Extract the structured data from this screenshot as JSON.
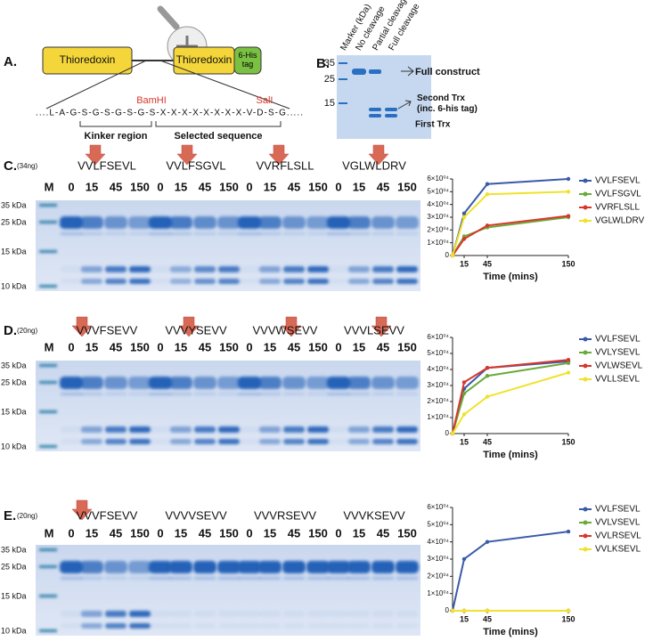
{
  "panel_a": {
    "label": "A.",
    "box1": "Thioredoxin",
    "box2": "Thioredoxin",
    "tag": "6-His tag",
    "site1": "BamHI",
    "site2": "SalI",
    "sequence": "....L-A-G-S-G-S-G-S-G-S-X-X-X-X-X-X-X-X-V-D-S-G.....",
    "region1": "Kinker region",
    "region2": "Selected sequence"
  },
  "panel_b": {
    "label": "B.",
    "lanes": [
      "Marker (kDa)",
      "No cleavage",
      "Partial cleavage",
      "Full cleavage"
    ],
    "markers": [
      "35",
      "25",
      "15"
    ],
    "notes": [
      "Full construct",
      "Second Trx (inc. 6-his tag)",
      "First Trx"
    ]
  },
  "gels": [
    {
      "label": "C.",
      "amount": "(34ng)",
      "peptides": [
        "VVLFSEVL",
        "VVLFSGVL",
        "VVRFLSLL",
        "VGLWLDRV"
      ],
      "marker_lane": "M",
      "times": [
        "0",
        "15",
        "45",
        "150"
      ],
      "size_markers": [
        "35 kDa",
        "25 kDa",
        "15 kDa",
        "10 kDa"
      ]
    },
    {
      "label": "D.",
      "amount": "(20ng)",
      "peptides": [
        "VVVFSEVV",
        "VVVYSEVV",
        "VVVWSEVV",
        "VVVLSEVV"
      ],
      "marker_lane": "M",
      "times": [
        "0",
        "15",
        "45",
        "150"
      ],
      "size_markers": [
        "35 kDa",
        "25 kDa",
        "15 kDa",
        "10 kDa"
      ]
    },
    {
      "label": "E.",
      "amount": "(20ng)",
      "peptides": [
        "VVVFSEVV",
        "VVVVSEVV",
        "VVVRSEVV",
        "VVVKSEVV"
      ],
      "marker_lane": "M",
      "times": [
        "0",
        "15",
        "45",
        "150"
      ],
      "size_markers": [
        "35 kDa",
        "25 kDa",
        "15 kDa",
        "10 kDa"
      ]
    }
  ],
  "chart_data": [
    {
      "type": "line",
      "x_label": "Time (mins)",
      "x": [
        0,
        15,
        45,
        150
      ],
      "xlim": [
        0,
        150
      ],
      "xticks": [
        15,
        45,
        150
      ],
      "ylim": [
        0,
        60000
      ],
      "yticks": [
        0,
        {
          "value": 10000,
          "label": "1×10⁰⁴"
        },
        {
          "value": 20000,
          "label": "2×10⁰⁴"
        },
        {
          "value": 30000,
          "label": "3×10⁰⁴"
        },
        {
          "value": 40000,
          "label": "4×10⁰⁴"
        },
        {
          "value": 50000,
          "label": "5×10⁰⁴"
        },
        {
          "value": 60000,
          "label": "6×10⁰⁴"
        }
      ],
      "series": [
        {
          "name": "VVLFSEVL",
          "color": "#3a5ba8",
          "values": [
            0,
            33000,
            56000,
            60000
          ]
        },
        {
          "name": "VVLFSGVL",
          "color": "#6aaa3a",
          "values": [
            0,
            15000,
            22000,
            30000
          ]
        },
        {
          "name": "VVRFLSLL",
          "color": "#d9362b",
          "values": [
            0,
            13000,
            23500,
            31000
          ]
        },
        {
          "name": "VGLWLDRV",
          "color": "#f0e22c",
          "values": [
            0,
            30000,
            48000,
            50000
          ]
        }
      ]
    },
    {
      "type": "line",
      "x_label": "Time (mins)",
      "x": [
        0,
        15,
        45,
        150
      ],
      "xlim": [
        0,
        150
      ],
      "xticks": [
        15,
        45,
        150
      ],
      "ylim": [
        0,
        60000
      ],
      "yticks": [
        0,
        {
          "value": 10000,
          "label": "1×10⁰⁴"
        },
        {
          "value": 20000,
          "label": "2×10⁰⁴"
        },
        {
          "value": 30000,
          "label": "3×10⁰⁴"
        },
        {
          "value": 40000,
          "label": "4×10⁰⁴"
        },
        {
          "value": 50000,
          "label": "5×10⁰⁴"
        },
        {
          "value": 60000,
          "label": "6×10⁰⁴"
        }
      ],
      "series": [
        {
          "name": "VVLFSEVL",
          "color": "#3a5ba8",
          "values": [
            0,
            28000,
            41000,
            45000
          ]
        },
        {
          "name": "VVLYSEVL",
          "color": "#6aaa3a",
          "values": [
            0,
            25000,
            36000,
            44000
          ]
        },
        {
          "name": "VVLWSEVL",
          "color": "#d9362b",
          "values": [
            0,
            32000,
            41000,
            46000
          ]
        },
        {
          "name": "VVLLSEVL",
          "color": "#f0e22c",
          "values": [
            0,
            12000,
            23000,
            38000
          ]
        }
      ]
    },
    {
      "type": "line",
      "x_label": "Time (mins)",
      "x": [
        0,
        15,
        45,
        150
      ],
      "xlim": [
        0,
        150
      ],
      "xticks": [
        15,
        45,
        150
      ],
      "ylim": [
        0,
        60000
      ],
      "yticks": [
        0,
        {
          "value": 10000,
          "label": "1×10⁰⁴"
        },
        {
          "value": 20000,
          "label": "2×10⁰⁴"
        },
        {
          "value": 30000,
          "label": "3×10⁰⁴"
        },
        {
          "value": 40000,
          "label": "4×10⁰⁴"
        },
        {
          "value": 50000,
          "label": "5×10⁰⁴"
        },
        {
          "value": 60000,
          "label": "6×10⁰⁴"
        }
      ],
      "series": [
        {
          "name": "VVLFSEVL",
          "color": "#3a5ba8",
          "values": [
            0,
            30000,
            40000,
            46000
          ]
        },
        {
          "name": "VVLVSEVL",
          "color": "#6aaa3a",
          "values": [
            0,
            0,
            0,
            0
          ]
        },
        {
          "name": "VVLRSEVL",
          "color": "#d9362b",
          "values": [
            0,
            0,
            0,
            0
          ]
        },
        {
          "name": "VVLKSEVL",
          "color": "#f0e22c",
          "values": [
            0,
            0,
            0,
            0
          ]
        }
      ]
    }
  ]
}
